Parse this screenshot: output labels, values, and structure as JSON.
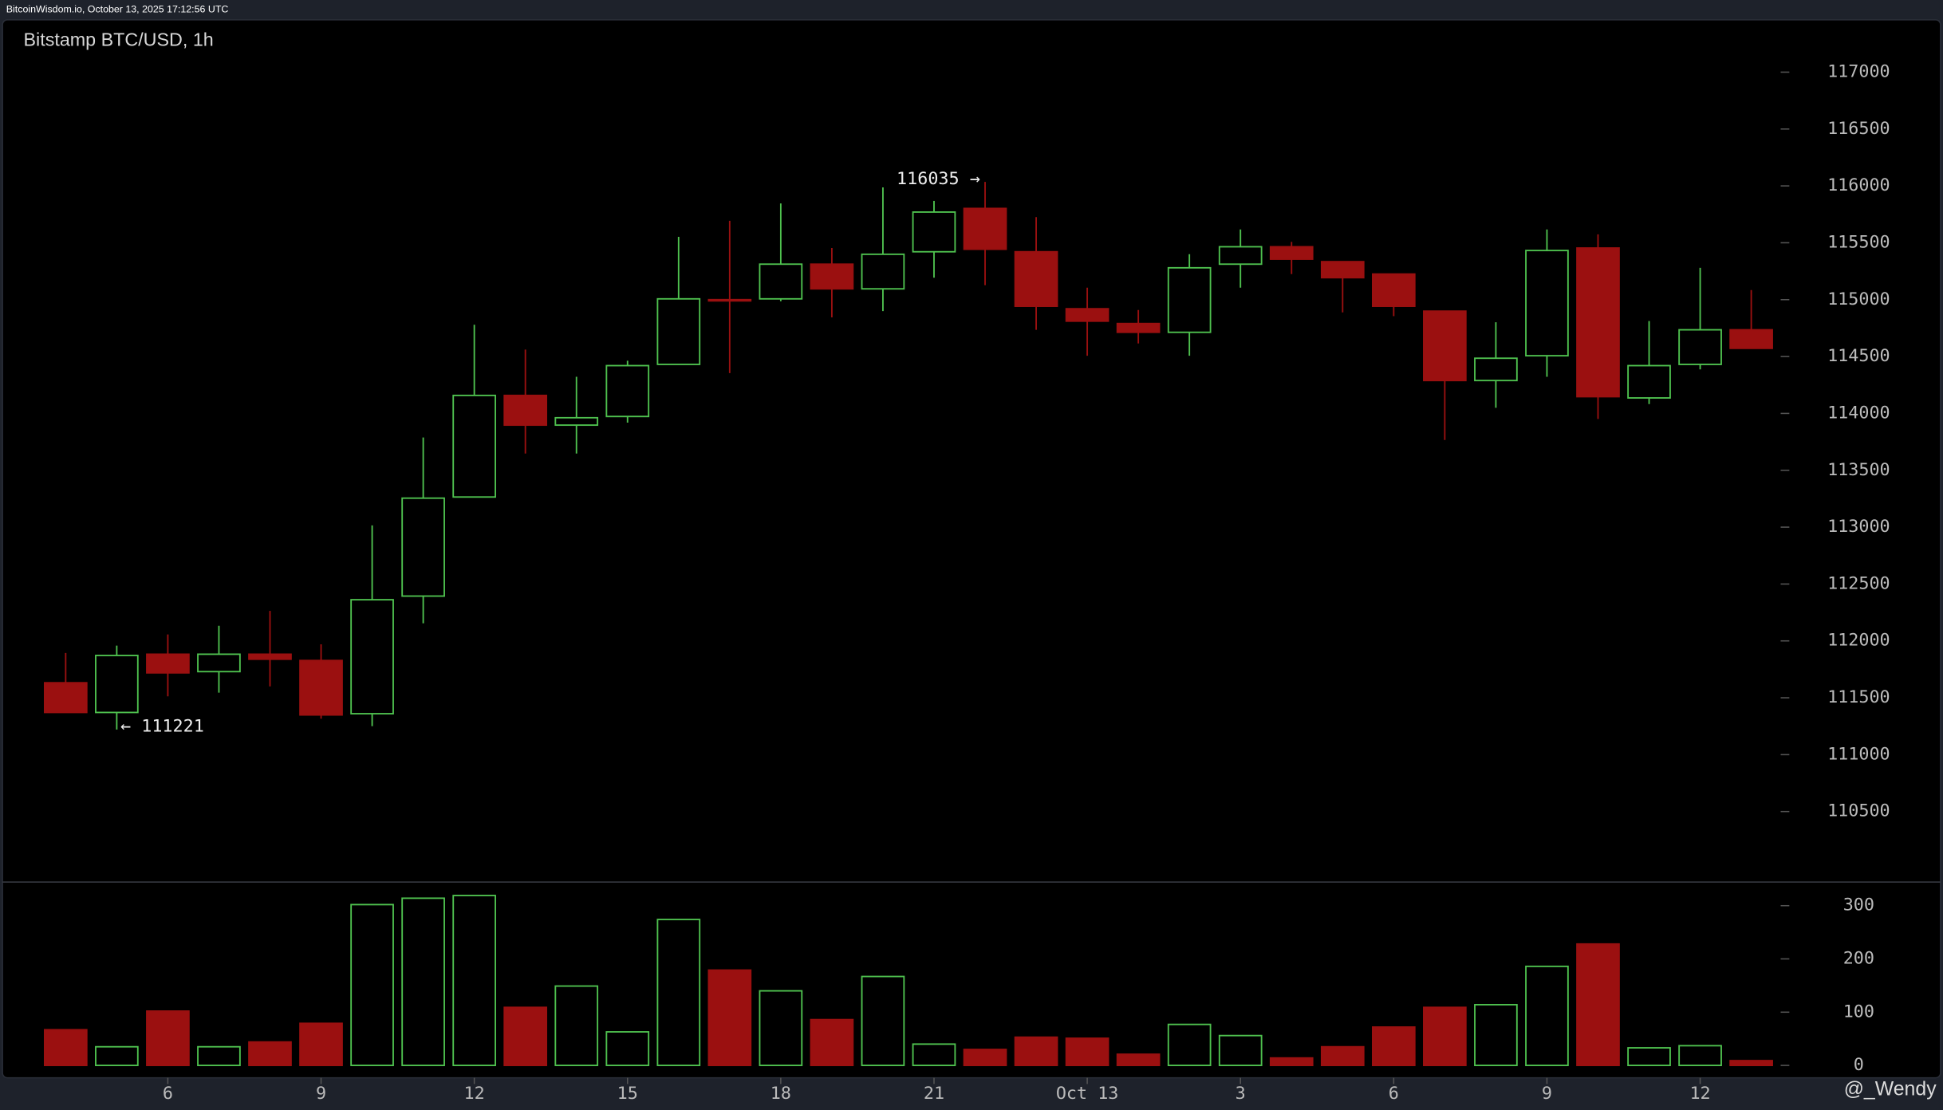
{
  "header": "BitcoinWisdom.io, October 13, 2025 17:12:56 UTC",
  "watermark": "@_Wendy",
  "chart_data": [
    {
      "type": "candlestick",
      "title": "Bitstamp BTC/USD, 1h",
      "categories": [
        null,
        null,
        "6",
        null,
        null,
        "9",
        null,
        null,
        "12",
        null,
        null,
        "15",
        null,
        null,
        "18",
        null,
        null,
        "21",
        null,
        null,
        "Oct 13",
        null,
        null,
        "3",
        null,
        null,
        "6",
        null,
        null,
        "9",
        null,
        null,
        "12",
        null
      ],
      "open": [
        111632,
        111371,
        111883,
        111730,
        111883,
        111828,
        111360,
        112394,
        113265,
        114158,
        113897,
        113973,
        114431,
        115000,
        115007,
        115312,
        115095,
        115421,
        115802,
        115421,
        114920,
        114790,
        114713,
        115312,
        115465,
        115334,
        115225,
        114899,
        114289,
        114507,
        115454,
        114136,
        114431,
        114735
      ],
      "high": [
        111894,
        111959,
        112057,
        112133,
        112264,
        111970,
        113015,
        113788,
        114779,
        114561,
        114322,
        114463,
        115552,
        115693,
        115846,
        115454,
        115987,
        115868,
        116035,
        115726,
        115105,
        114909,
        115400,
        115617,
        115508,
        115334,
        115225,
        114899,
        114801,
        115617,
        115574,
        114812,
        115280,
        115084
      ],
      "low": [
        111371,
        111221,
        111513,
        111545,
        111600,
        111316,
        111251,
        112155,
        113265,
        113647,
        113647,
        113919,
        114431,
        114354,
        114986,
        114844,
        114899,
        115193,
        115127,
        114735,
        114507,
        114615,
        114507,
        115105,
        115225,
        114888,
        114855,
        113766,
        114049,
        114322,
        113951,
        114082,
        114387,
        114572
      ],
      "close": [
        111371,
        111872,
        111719,
        111883,
        111839,
        111349,
        112362,
        113255,
        114158,
        113897,
        113962,
        114420,
        115007,
        114996,
        115312,
        115095,
        115399,
        115770,
        115443,
        114942,
        114811,
        114713,
        115280,
        115465,
        115356,
        115193,
        114942,
        114289,
        114485,
        115432,
        114147,
        114420,
        114735,
        114572
      ],
      "max_label": "116035 →",
      "min_label": "← 111221",
      "up_color": "#4fc24f",
      "down_color": "#9b1010",
      "ylim": [
        109880,
        117460
      ],
      "yticks": [
        110500,
        111000,
        111500,
        112000,
        112500,
        113000,
        113500,
        114000,
        114500,
        115000,
        115500,
        116000,
        116500,
        117000
      ]
    },
    {
      "type": "bar",
      "name": "volume",
      "values": [
        67,
        35,
        102,
        35,
        44,
        79,
        302,
        314,
        319,
        109,
        149,
        63,
        274,
        179,
        140,
        86,
        167,
        40,
        30,
        53,
        51,
        21,
        77,
        56,
        14,
        35,
        72,
        109,
        114,
        186,
        228,
        33,
        37,
        9
      ],
      "ylim": [
        0,
        342
      ],
      "yticks": [
        0,
        100,
        200,
        300
      ]
    }
  ]
}
